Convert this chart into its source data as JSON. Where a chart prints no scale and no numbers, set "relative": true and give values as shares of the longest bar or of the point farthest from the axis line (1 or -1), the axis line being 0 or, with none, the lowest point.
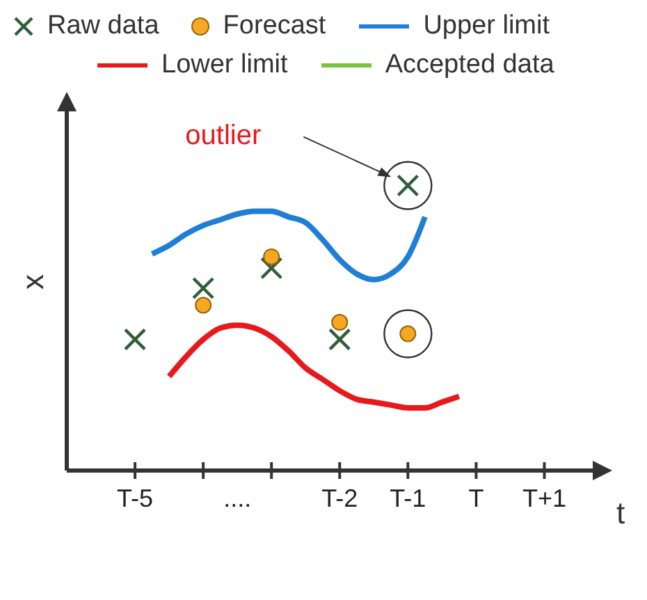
{
  "chart_data": {
    "type": "scatter",
    "xlabel": "t",
    "ylabel": "x",
    "relative": true,
    "legend": "top",
    "tick_labels": "x",
    "annotations": [
      "outlier"
    ],
    "categories": [
      "T-5",
      null,
      null,
      null,
      null,
      null,
      "....",
      null,
      null,
      null,
      null,
      null,
      "T-2",
      null,
      null,
      null,
      "T-1",
      null,
      null,
      null,
      "T",
      null,
      null,
      null,
      "T+1"
    ],
    "series": [
      {
        "name": "Raw data",
        "marker": "cross",
        "color": "#2f5f3a",
        "values": [
          0.46,
          null,
          null,
          null,
          0.64,
          null,
          null,
          null,
          0.71,
          null,
          null,
          null,
          0.46,
          null,
          null,
          null,
          1,
          null,
          null,
          null,
          null,
          null,
          null,
          null,
          null
        ]
      },
      {
        "name": "Forecast",
        "marker": "circle",
        "color": "#f7a823",
        "values": [
          null,
          null,
          null,
          null,
          0.58,
          null,
          null,
          null,
          0.75,
          null,
          null,
          null,
          0.52,
          null,
          null,
          null,
          0.48,
          null,
          null,
          null,
          null,
          null,
          null,
          null,
          null
        ]
      },
      {
        "name": "Upper limit",
        "type": "line",
        "marker": "none",
        "color": "#1f7fd6",
        "values": [
          null,
          0.76,
          0.79,
          0.83,
          0.86,
          0.88,
          0.9,
          0.91,
          0.91,
          0.89,
          0.87,
          0.81,
          0.74,
          0.69,
          0.67,
          0.69,
          0.75,
          0.89,
          null,
          null,
          null,
          null,
          null,
          null,
          null
        ]
      },
      {
        "name": "Lower limit",
        "type": "line",
        "marker": "none",
        "color": "#e8191c",
        "values": [
          null,
          null,
          0.33,
          0.4,
          0.46,
          0.5,
          0.51,
          0.5,
          0.47,
          0.42,
          0.36,
          0.32,
          0.28,
          0.25,
          0.24,
          0.23,
          0.22,
          0.22,
          0.24,
          0.26,
          null,
          null,
          null,
          null,
          null
        ]
      },
      {
        "name": "Accepted data",
        "type": "line",
        "marker": "none",
        "color": "#7dc242",
        "values": [
          null,
          null,
          null,
          null,
          null,
          null,
          null,
          null,
          null,
          null,
          null,
          null,
          null,
          null,
          null,
          null,
          null,
          null,
          null,
          null,
          null,
          null,
          null,
          null,
          null
        ]
      }
    ]
  }
}
